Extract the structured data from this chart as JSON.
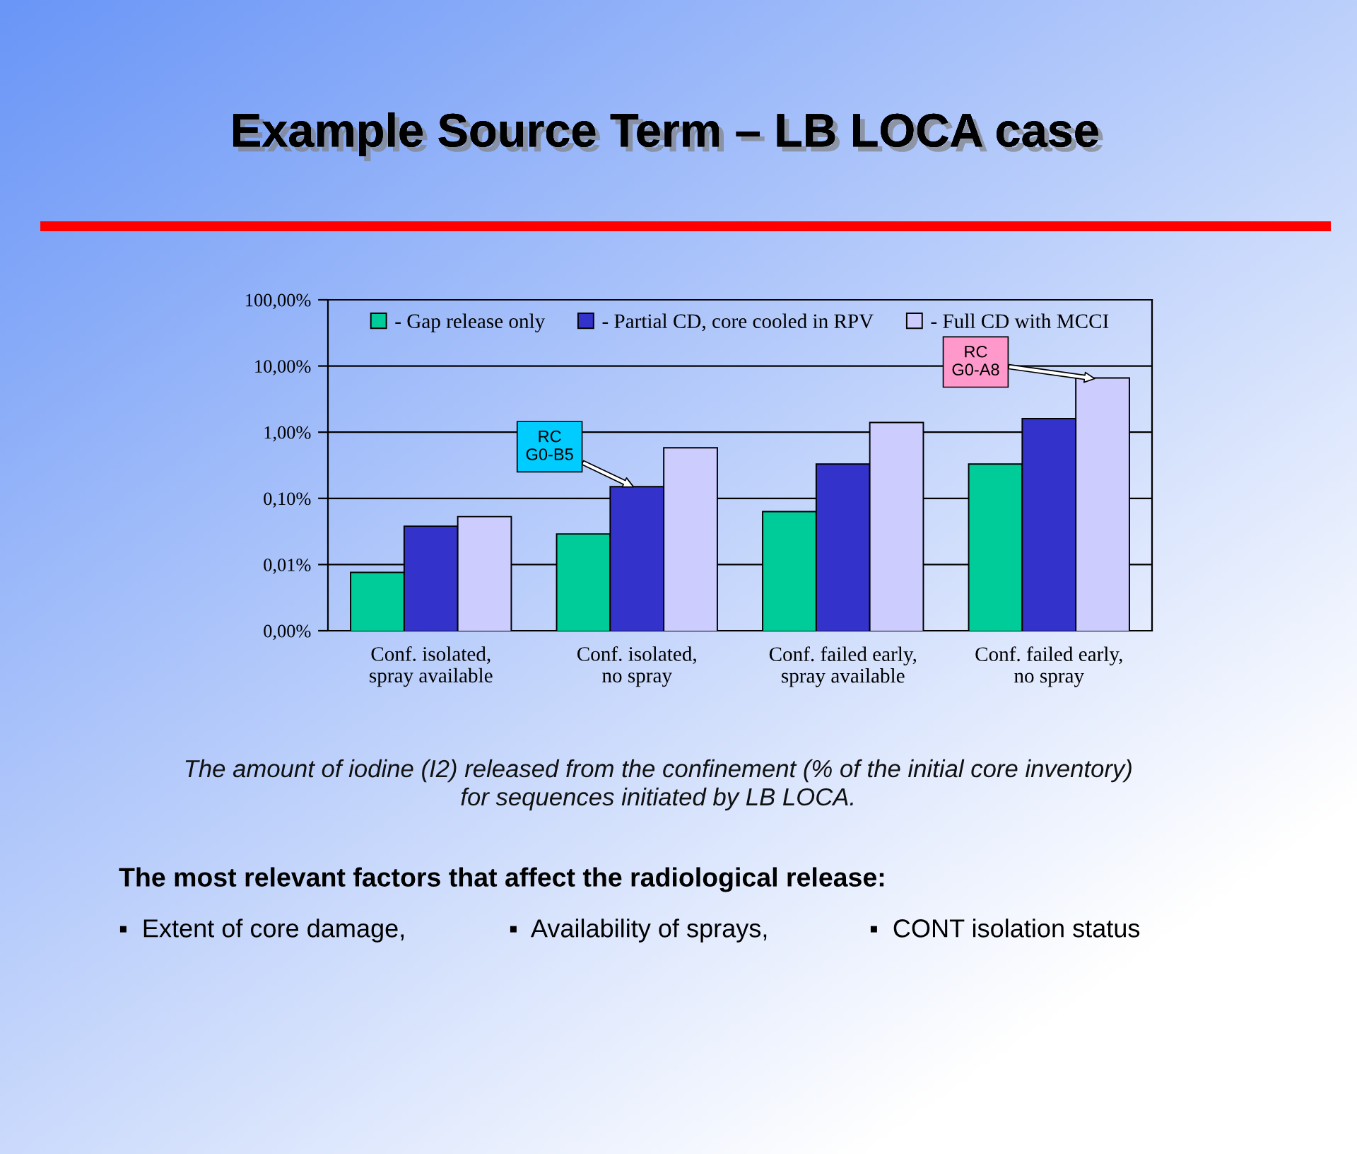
{
  "chart_data": {
    "type": "bar",
    "title": "Example Source Term – LB LOCA case",
    "categories": [
      "Conf. isolated,\nspray available",
      "Conf. isolated,\nno spray",
      "Conf. failed early,\nspray available",
      "Conf. failed early,\nno spray"
    ],
    "series": [
      {
        "name": "- Gap release only",
        "color": "#00cc99",
        "values": [
          0.0076,
          0.029,
          0.063,
          0.33
        ]
      },
      {
        "name": "- Partial CD, core cooled in RPV",
        "color": "#3333cc",
        "values": [
          0.038,
          0.15,
          0.33,
          1.6
        ]
      },
      {
        "name": "- Full CD with MCCI",
        "color": "#ccccff",
        "values": [
          0.053,
          0.58,
          1.4,
          6.6
        ]
      }
    ],
    "log": true,
    "ylim": [
      0.001,
      100
    ],
    "yticks": [
      {
        "value": 0.001,
        "label": "0,00%"
      },
      {
        "value": 0.01,
        "label": "0,01%"
      },
      {
        "value": 0.1,
        "label": "0,10%"
      },
      {
        "value": 1,
        "label": "1,00%"
      },
      {
        "value": 10,
        "label": "10,00%"
      },
      {
        "value": 100,
        "label": "100,00%"
      }
    ],
    "grid": "y",
    "legend": "top",
    "annotations": [
      "RC\nG0-B5",
      "RC\nG0-A8",
      "The amount of iodine (I2) released from the confinement (% of the initial core inventory)\nfor sequences initiated by LB LOCA.",
      "The most relevant factors that affect the radiological release:",
      "▪  Extent of core damage,",
      "▪  Availability of sprays,",
      "▪  CONT isolation status"
    ]
  }
}
